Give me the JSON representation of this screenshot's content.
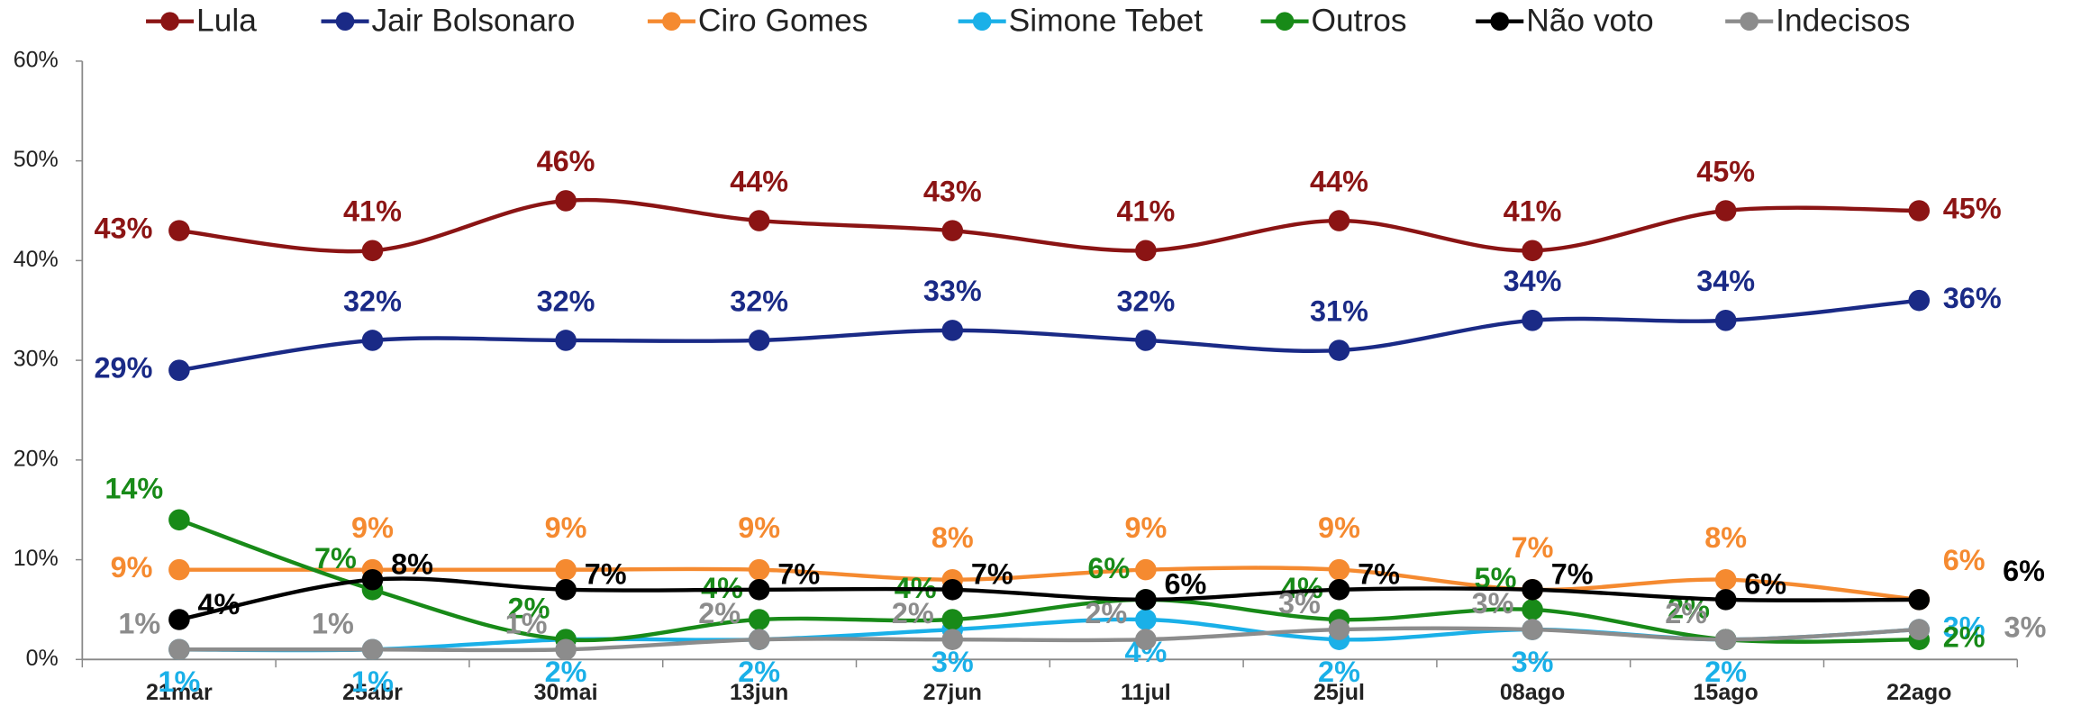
{
  "chart_data": {
    "type": "line",
    "categories": [
      "21mar",
      "25abr",
      "30mai",
      "13jun",
      "27jun",
      "11jul",
      "25jul",
      "08ago",
      "15ago",
      "22ago"
    ],
    "series": [
      {
        "name": "Lula",
        "color": "#8b1414",
        "values": [
          43,
          41,
          46,
          44,
          43,
          41,
          44,
          41,
          45,
          45
        ],
        "value_labels": [
          "43%",
          "41%",
          "46%",
          "44%",
          "43%",
          "41%",
          "44%",
          "41%",
          "45%",
          "45%"
        ]
      },
      {
        "name": "Jair Bolsonaro",
        "color": "#1a2a86",
        "values": [
          29,
          32,
          32,
          32,
          33,
          32,
          31,
          34,
          34,
          36
        ],
        "value_labels": [
          "29%",
          "32%",
          "32%",
          "32%",
          "33%",
          "32%",
          "31%",
          "34%",
          "34%",
          "36%"
        ]
      },
      {
        "name": "Ciro Gomes",
        "color": "#f58a30",
        "values": [
          9,
          9,
          9,
          9,
          8,
          9,
          9,
          7,
          8,
          6
        ],
        "value_labels": [
          "9%",
          "9%",
          "9%",
          "9%",
          "8%",
          "9%",
          "9%",
          "7%",
          "8%",
          "6%"
        ]
      },
      {
        "name": "Simone Tebet",
        "color": "#1ab0e8",
        "values": [
          1,
          1,
          2,
          2,
          3,
          4,
          2,
          3,
          2,
          3
        ],
        "value_labels": [
          "1%",
          "1%",
          "2%",
          "2%",
          "3%",
          "4%",
          "2%",
          "3%",
          "2%",
          "3%"
        ]
      },
      {
        "name": "Outros",
        "color": "#188a18",
        "values": [
          14,
          7,
          2,
          4,
          4,
          6,
          4,
          5,
          2,
          2
        ],
        "value_labels": [
          "14%",
          "7%",
          "2%",
          "4%",
          "4%",
          "6%",
          "4%",
          "5%",
          "2%",
          "2%"
        ]
      },
      {
        "name": "Não voto",
        "color": "#000000",
        "values": [
          4,
          8,
          7,
          7,
          7,
          6,
          7,
          7,
          6,
          6
        ],
        "value_labels": [
          "4%",
          "8%",
          "7%",
          "7%",
          "7%",
          "6%",
          "7%",
          "7%",
          "6%",
          "6%"
        ]
      },
      {
        "name": "Indecisos",
        "color": "#8c8c8c",
        "values": [
          1,
          1,
          1,
          2,
          2,
          2,
          3,
          3,
          2,
          3
        ],
        "value_labels": [
          "1%",
          "1%",
          "1%",
          "2%",
          "2%",
          "2%",
          "3%",
          "3%",
          "2%",
          "3%"
        ]
      }
    ],
    "ylim": [
      0,
      60
    ],
    "yticks": [
      {
        "value": 0,
        "label": "0%"
      },
      {
        "value": 10,
        "label": "10%"
      },
      {
        "value": 20,
        "label": "20%"
      },
      {
        "value": 30,
        "label": "30%"
      },
      {
        "value": 40,
        "label": "40%"
      },
      {
        "value": 50,
        "label": "50%"
      },
      {
        "value": 60,
        "label": "60%"
      }
    ],
    "legend": "top"
  }
}
